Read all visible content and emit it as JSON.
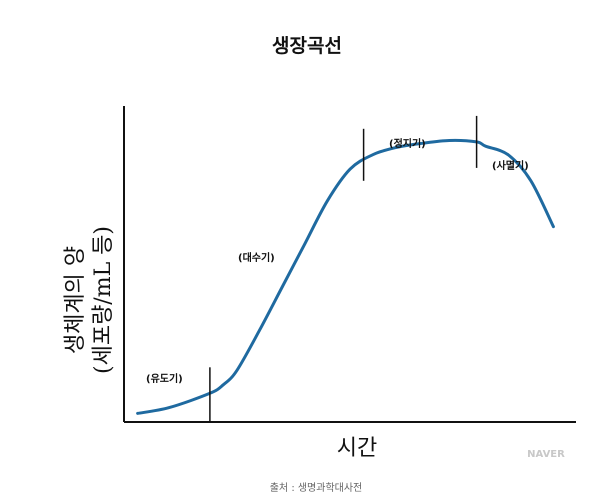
{
  "chart_data": {
    "type": "line",
    "title": "생장곡선",
    "ylabel": [
      "생체계의 양",
      "(세포량/mL 등)"
    ],
    "xlabel": "시간",
    "grid": false,
    "colors": {
      "curve": "#1f6aa0",
      "axis": "#111111",
      "marker": "#111111"
    },
    "series": [
      {
        "x": [
          0.03,
          0.1,
          0.19,
          0.22,
          0.25,
          0.3,
          0.35,
          0.4,
          0.45,
          0.5,
          0.55,
          0.6,
          0.66,
          0.72,
          0.78,
          0.8,
          0.85,
          0.9,
          0.95
        ],
        "y": [
          0.03,
          0.05,
          0.1,
          0.13,
          0.18,
          0.32,
          0.47,
          0.62,
          0.77,
          0.88,
          0.93,
          0.955,
          0.97,
          0.98,
          0.975,
          0.96,
          0.93,
          0.84,
          0.68
        ]
      }
    ],
    "phases": [
      {
        "label": "(유도기)",
        "boundary_x": 0.19
      },
      {
        "label": "(대수기)"
      },
      {
        "label": "(정지기)",
        "boundary_x": 0.53
      },
      {
        "label": "(사멸기)",
        "boundary_x": 0.78
      }
    ],
    "xlim": [
      0,
      1
    ],
    "ylim": [
      0,
      1.1
    ]
  },
  "source": "출처 : 생명과학대사전",
  "watermark": "NAVER"
}
